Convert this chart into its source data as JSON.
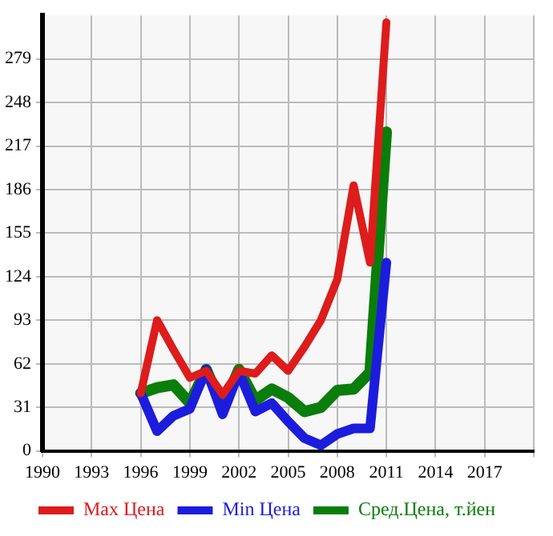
{
  "chart_data": {
    "type": "line",
    "x": [
      1996,
      1997,
      1998,
      1999,
      2000,
      2001,
      2002,
      2003,
      2004,
      2005,
      2006,
      2007,
      2008,
      2009,
      2010,
      2011
    ],
    "series": [
      {
        "name": "Max Цена",
        "color": "#dd1c1c",
        "values": [
          41,
          93,
          72,
          52,
          57,
          40,
          57,
          55,
          68,
          57,
          74,
          93,
          122,
          189,
          134,
          305
        ]
      },
      {
        "name": "Min Цена",
        "color": "#1c1cdd",
        "values": [
          41,
          14,
          25,
          30,
          58,
          26,
          56,
          28,
          34,
          21,
          9,
          4,
          12,
          16,
          16,
          134
        ]
      },
      {
        "name": "Сред.Цена, т.йен",
        "color": "#0a7d0a",
        "values": [
          41,
          45,
          47,
          34,
          58,
          31,
          58,
          36,
          44,
          38,
          28,
          31,
          43,
          44,
          56,
          227
        ]
      }
    ],
    "xlim": [
      1990,
      2020
    ],
    "xticks": [
      1990,
      1993,
      1996,
      1999,
      2002,
      2005,
      2008,
      2011,
      2014,
      2017,
      {
        "value": 2020,
        "label": null
      }
    ],
    "ylim": [
      0,
      310
    ],
    "yticks": [
      0,
      31,
      62,
      93,
      124,
      155,
      186,
      217,
      248,
      279
    ],
    "grid": true,
    "legend": "bottom",
    "marker": "none",
    "line_style": "solid"
  }
}
